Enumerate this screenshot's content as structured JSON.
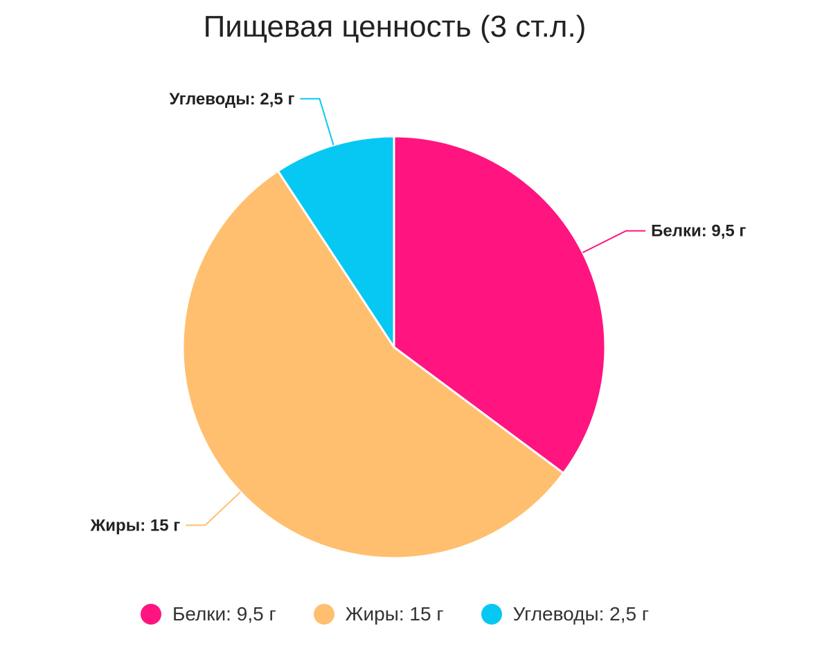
{
  "chart_data": {
    "type": "pie",
    "title": "Пищевая ценность (3 ст.л.)",
    "categories": [
      "Белки",
      "Жиры",
      "Углеводы"
    ],
    "values": [
      9.5,
      15,
      2.5
    ],
    "unit": "г",
    "slice_labels": [
      "Белки: 9,5 г",
      "Жиры: 15 г",
      "Углеводы: 2,5 г"
    ],
    "colors": [
      "#ff1480",
      "#ffbf6e",
      "#07c8f2"
    ],
    "legend_position": "bottom"
  },
  "legend": {
    "items": [
      {
        "label": "Белки: 9,5 г",
        "color": "#ff1480"
      },
      {
        "label": "Жиры: 15 г",
        "color": "#ffbf6e"
      },
      {
        "label": "Углеводы: 2,5 г",
        "color": "#07c8f2"
      }
    ]
  }
}
